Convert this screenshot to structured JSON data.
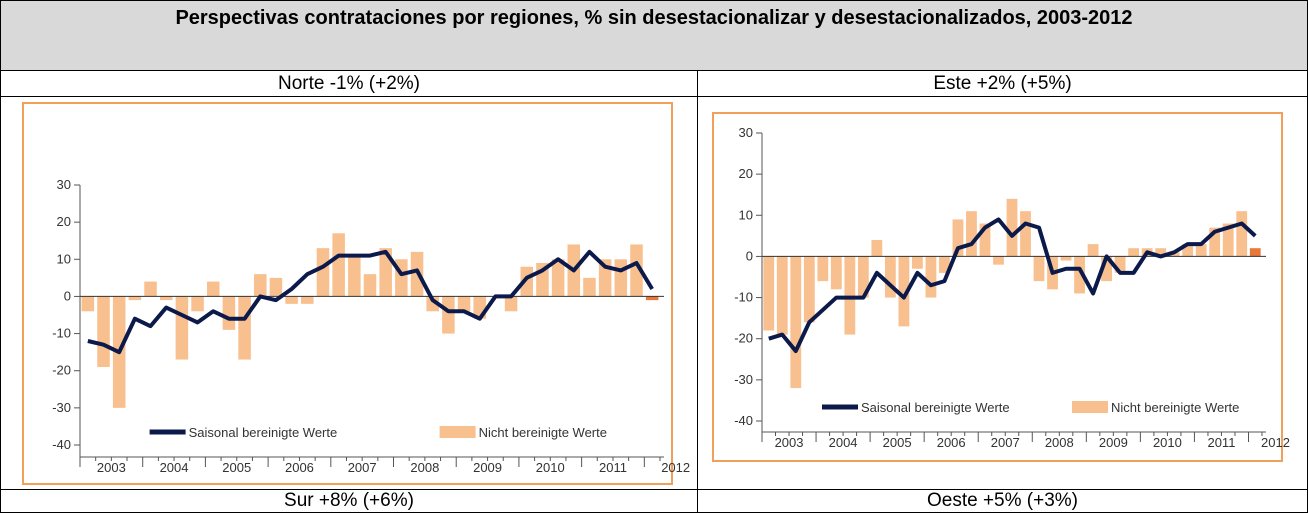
{
  "table": {
    "title": "Perspectivas contrataciones por regiones, % sin desestacionalizar y desestacionalizados, 2003-2012",
    "cells": [
      "Norte -1% (+2%)",
      "Este +2% (+5%)",
      "Sur +8% (+6%)",
      "Oeste +5% (+3%)"
    ]
  },
  "chart_data": [
    {
      "type": "bar-line",
      "ylim": [
        -40,
        30
      ],
      "yticks": [
        -40,
        -30,
        -20,
        -10,
        0,
        10,
        20,
        30
      ],
      "x_labels": [
        "2003",
        "2004",
        "2005",
        "2006",
        "2007",
        "2008",
        "2009",
        "2010",
        "2011",
        "2012"
      ],
      "last_color": "#e8773a",
      "series": [
        {
          "name": "Nicht bereinigte Werte",
          "color": "#f9c08f",
          "kind": "bar",
          "values": [
            -4,
            -19,
            -30,
            -1,
            4,
            -1,
            -17,
            -4,
            4,
            -9,
            -17,
            6,
            5,
            -2,
            -2,
            13,
            17,
            11,
            6,
            13,
            10,
            12,
            -4,
            -10,
            -4,
            -6,
            0,
            -4,
            8,
            9,
            10,
            14,
            5,
            10,
            10,
            14,
            -1
          ]
        },
        {
          "name": "Saisonal bereinigte Werte",
          "color": "#0b1a4a",
          "kind": "line",
          "values": [
            -12,
            -13,
            -15,
            -6,
            -8,
            -3,
            -5,
            -7,
            -4,
            -6,
            -6,
            0,
            -1,
            2,
            6,
            8,
            11,
            11,
            11,
            12,
            6,
            7,
            -1,
            -4,
            -4,
            -6,
            0,
            0,
            5,
            7,
            10,
            7,
            12,
            8,
            7,
            9,
            2
          ]
        }
      ]
    },
    {
      "type": "bar-line",
      "ylim": [
        -40,
        30
      ],
      "yticks": [
        -40,
        -30,
        -20,
        -10,
        0,
        10,
        20,
        30
      ],
      "x_labels": [
        "2003",
        "2004",
        "2005",
        "2006",
        "2007",
        "2008",
        "2009",
        "2010",
        "2011",
        "2012"
      ],
      "last_color": "#e8773a",
      "series": [
        {
          "name": "Nicht bereinigte Werte",
          "color": "#f9c08f",
          "kind": "bar",
          "values": [
            -18,
            -19,
            -32,
            -16,
            -6,
            -8,
            -19,
            -10,
            4,
            -10,
            -17,
            -3,
            -10,
            -4,
            9,
            11,
            8,
            -2,
            14,
            11,
            -6,
            -8,
            -1,
            -9,
            3,
            -6,
            -4,
            2,
            2,
            2,
            1,
            3,
            3,
            7,
            8,
            11,
            2
          ]
        },
        {
          "name": "Saisonal bereinigte Werte",
          "color": "#0b1a4a",
          "kind": "line",
          "values": [
            -20,
            -19,
            -23,
            -16,
            -13,
            -10,
            -10,
            -10,
            -4,
            -7,
            -10,
            -4,
            -7,
            -6,
            2,
            3,
            7,
            9,
            5,
            8,
            7,
            -4,
            -3,
            -3,
            -9,
            0,
            -4,
            -4,
            1,
            0,
            1,
            3,
            3,
            6,
            7,
            8,
            5
          ]
        }
      ]
    }
  ]
}
